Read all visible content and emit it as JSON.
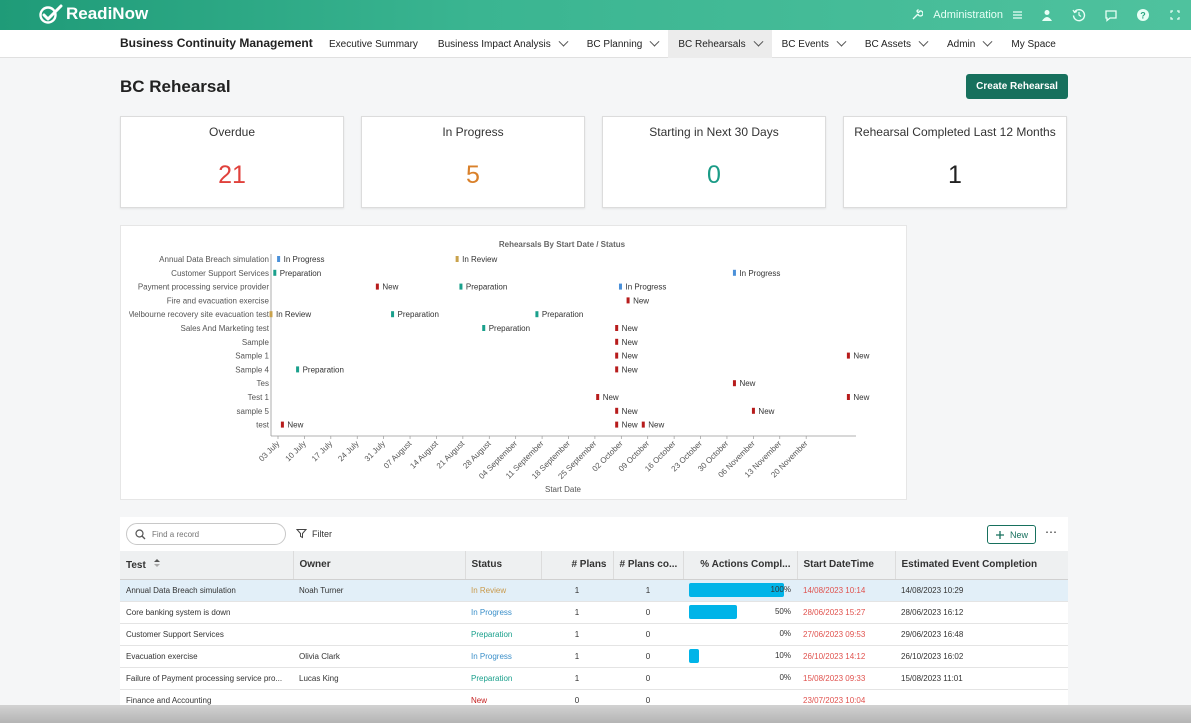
{
  "app": {
    "logo_text": "ReadiNow",
    "admin_label": "Administration"
  },
  "nav": {
    "title": "Business Continuity Management",
    "items": [
      {
        "label": "Executive Summary",
        "has_menu": false,
        "active": false
      },
      {
        "label": "Business Impact Analysis",
        "has_menu": true,
        "active": false
      },
      {
        "label": "BC Planning",
        "has_menu": true,
        "active": false
      },
      {
        "label": "BC Rehearsals",
        "has_menu": true,
        "active": true
      },
      {
        "label": "BC Events",
        "has_menu": true,
        "active": false
      },
      {
        "label": "BC Assets",
        "has_menu": true,
        "active": false
      },
      {
        "label": "Admin",
        "has_menu": true,
        "active": false
      },
      {
        "label": "My Space",
        "has_menu": false,
        "active": false
      }
    ]
  },
  "page": {
    "title": "BC Rehearsal",
    "create_button": "Create Rehearsal"
  },
  "kpis": [
    {
      "title": "Overdue",
      "value": "21",
      "color": "#e0413c"
    },
    {
      "title": "In Progress",
      "value": "5",
      "color": "#d9802a"
    },
    {
      "title": "Starting in Next 30 Days",
      "value": "0",
      "color": "#1a9b86"
    },
    {
      "title": "Rehearsal Completed Last 12 Months",
      "value": "1",
      "color": "#222222"
    }
  ],
  "chart_data": {
    "type": "scatter",
    "title": "Rehearsals By Start Date / Status",
    "xlabel": "Start Date",
    "ylabel": "",
    "x_ticks": [
      "03 July",
      "10 July",
      "17 July",
      "24 July",
      "31 July",
      "07 August",
      "14 August",
      "21 August",
      "28 August",
      "04 September",
      "11 September",
      "18 September",
      "25 September",
      "02 October",
      "09 October",
      "16 October",
      "23 October",
      "30 October",
      "06 November",
      "13 November",
      "20 November"
    ],
    "xlim": [
      "2023-06-26",
      "2023-11-27"
    ],
    "categories": [
      "Annual Data Breach simulation",
      "Customer Support Services",
      "Payment processing service provider",
      "Fire and evacuation exercise",
      "Melbourne recovery site evacuation test",
      "Sales And Marketing test",
      "Sample",
      "Sample 1",
      "Sample 4",
      "Tes",
      "Test 1",
      "sample 5",
      "test"
    ],
    "status_colors": {
      "In Progress": "#4a90d9",
      "Preparation": "#1aa08c",
      "In Review": "#c9a24c",
      "New": "#b71c1c"
    },
    "points": [
      {
        "category": "Annual Data Breach simulation",
        "date": "2023-06-28",
        "status": "In Progress"
      },
      {
        "category": "Annual Data Breach simulation",
        "date": "2023-08-14",
        "status": "In Review"
      },
      {
        "category": "Customer Support Services",
        "date": "2023-06-27",
        "status": "Preparation"
      },
      {
        "category": "Customer Support Services",
        "date": "2023-10-26",
        "status": "In Progress"
      },
      {
        "category": "Payment processing service provider",
        "date": "2023-07-24",
        "status": "New"
      },
      {
        "category": "Payment processing service provider",
        "date": "2023-08-15",
        "status": "Preparation"
      },
      {
        "category": "Payment processing service provider",
        "date": "2023-09-26",
        "status": "In Progress"
      },
      {
        "category": "Fire and evacuation exercise",
        "date": "2023-09-28",
        "status": "New"
      },
      {
        "category": "Melbourne recovery site evacuation test",
        "date": "2023-06-26",
        "status": "In Review"
      },
      {
        "category": "Melbourne recovery site evacuation test",
        "date": "2023-07-28",
        "status": "Preparation"
      },
      {
        "category": "Melbourne recovery site evacuation test",
        "date": "2023-09-04",
        "status": "Preparation"
      },
      {
        "category": "Sales And Marketing test",
        "date": "2023-08-21",
        "status": "Preparation"
      },
      {
        "category": "Sales And Marketing test",
        "date": "2023-09-25",
        "status": "New"
      },
      {
        "category": "Sample",
        "date": "2023-09-25",
        "status": "New"
      },
      {
        "category": "Sample 1",
        "date": "2023-09-25",
        "status": "New"
      },
      {
        "category": "Sample 1",
        "date": "2023-11-25",
        "status": "New"
      },
      {
        "category": "Sample 4",
        "date": "2023-09-25",
        "status": "New"
      },
      {
        "category": "Sample 4",
        "date": "2023-07-03",
        "status": "Preparation"
      },
      {
        "category": "Tes",
        "date": "2023-10-26",
        "status": "New"
      },
      {
        "category": "Test 1",
        "date": "2023-09-20",
        "status": "New"
      },
      {
        "category": "Test 1",
        "date": "2023-11-25",
        "status": "New"
      },
      {
        "category": "sample 5",
        "date": "2023-09-25",
        "status": "New"
      },
      {
        "category": "sample 5",
        "date": "2023-10-31",
        "status": "New"
      },
      {
        "category": "test",
        "date": "2023-06-29",
        "status": "New"
      },
      {
        "category": "test",
        "date": "2023-09-25",
        "status": "New"
      },
      {
        "category": "test",
        "date": "2023-10-02",
        "status": "New"
      }
    ]
  },
  "grid": {
    "search_placeholder": "Find a record",
    "filter_label": "Filter",
    "new_label": "New",
    "more_label": "⋯",
    "columns": [
      "Test",
      "Owner",
      "Status",
      "# Plans",
      "# Plans co...",
      "% Actions Compl...",
      "Start DateTime",
      "Estimated Event Completion"
    ],
    "rows": [
      {
        "test": "Annual Data Breach simulation",
        "owner": "Noah Turner",
        "status": "In Review",
        "plans": "1",
        "plans_complete": "1",
        "actions_pct": "100%",
        "actions_value": 100,
        "start": "14/08/2023 10:14",
        "completion": "14/08/2023 10:29",
        "selected": true
      },
      {
        "test": "Core banking system is down",
        "owner": "",
        "status": "In Progress",
        "plans": "1",
        "plans_complete": "0",
        "actions_pct": "50%",
        "actions_value": 50,
        "start": "28/06/2023 15:27",
        "completion": "28/06/2023 16:12",
        "selected": false
      },
      {
        "test": "Customer Support Services",
        "owner": "",
        "status": "Preparation",
        "plans": "1",
        "plans_complete": "0",
        "actions_pct": "0%",
        "actions_value": 0,
        "start": "27/06/2023 09:53",
        "completion": "29/06/2023 16:48",
        "selected": false
      },
      {
        "test": "Evacuation exercise",
        "owner": "Olivia Clark",
        "status": "In Progress",
        "plans": "1",
        "plans_complete": "0",
        "actions_pct": "10%",
        "actions_value": 10,
        "start": "26/10/2023 14:12",
        "completion": "26/10/2023 16:02",
        "selected": false
      },
      {
        "test": "Failure of Payment processing service pro...",
        "owner": "Lucas King",
        "status": "Preparation",
        "plans": "1",
        "plans_complete": "0",
        "actions_pct": "0%",
        "actions_value": 0,
        "start": "15/08/2023 09:33",
        "completion": "15/08/2023 11:01",
        "selected": false
      },
      {
        "test": "Finance and Accounting",
        "owner": "",
        "status": "New",
        "plans": "0",
        "plans_complete": "0",
        "actions_pct": "",
        "actions_value": 0,
        "start": "23/07/2023 10:04",
        "completion": "",
        "selected": false
      }
    ]
  }
}
